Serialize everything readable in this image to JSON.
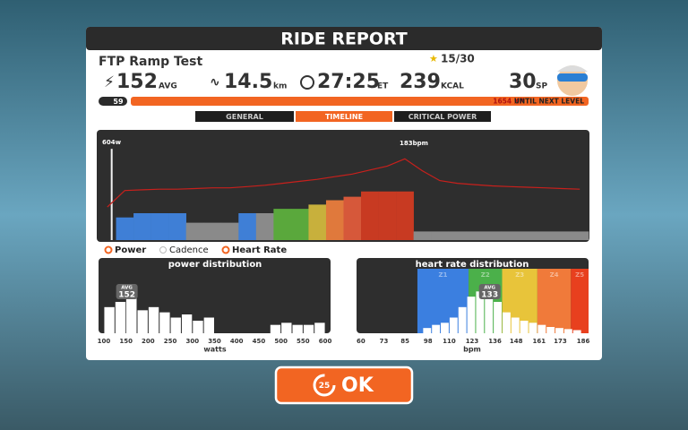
{
  "header": {
    "title": "RIDE REPORT"
  },
  "workout": {
    "name": "FTP Ramp Test",
    "stars": "15/30"
  },
  "stats": [
    {
      "value": 152,
      "unit": "AVG"
    },
    {
      "value": 14.5,
      "unit": "km"
    },
    {
      "value": "27:25",
      "unit": "ET"
    },
    {
      "value": 239,
      "unit": "KCAL"
    },
    {
      "value": 30,
      "unit": "SP"
    }
  ],
  "level": {
    "level": 59,
    "xp": "1654 XP",
    "text": "UNTIL NEXT LEVEL"
  },
  "tabs": [
    "GENERAL",
    "TIMELINE",
    "CRITICAL POWER"
  ],
  "timeline": {
    "max_power_label": "604w",
    "max_hr_label": "183bpm",
    "power": {
      "ylim": [
        0,
        700
      ],
      "values": [
        604,
        150,
        178,
        178,
        178,
        115,
        115,
        115,
        178,
        178,
        207,
        207,
        235,
        264,
        287,
        322,
        322,
        322,
        57,
        57,
        57,
        57,
        57,
        57,
        57,
        57,
        57,
        57
      ],
      "colors": [
        "#f2f2f2",
        "#3f7fd6",
        "#3f7fd6",
        "#3f7fd6",
        "#3f7fd6",
        "#8a8a8a",
        "#8a8a8a",
        "#8a8a8a",
        "#3f7fd6",
        "#8a8a8a",
        "#5aa83c",
        "#5aa83c",
        "#c8b03c",
        "#e0793c",
        "#d6583a",
        "#c83a22",
        "#c83a22",
        "#c83a22",
        "#8a8a8a",
        "#8a8a8a",
        "#8a8a8a",
        "#8a8a8a",
        "#8a8a8a",
        "#8a8a8a",
        "#8a8a8a",
        "#8a8a8a",
        "#8a8a8a",
        "#8a8a8a"
      ]
    },
    "heart_rate": {
      "ylim": [
        60,
        220
      ],
      "color": "#c8201c",
      "values": [
        110,
        135,
        136,
        137,
        137,
        138,
        139,
        139,
        141,
        143,
        146,
        149,
        152,
        156,
        160,
        166,
        172,
        183,
        165,
        150,
        146,
        144,
        142,
        141,
        140,
        139,
        138,
        137
      ]
    }
  },
  "legend": [
    "Power",
    "Cadence",
    "Heart Rate"
  ],
  "power_distribution": {
    "title": "power distribution",
    "avg_label": "AVG",
    "avg": 152,
    "xlabel": "watts",
    "xlim": [
      88,
      612
    ],
    "ylim": [
      0,
      60
    ],
    "xticks": [
      100,
      150,
      200,
      250,
      300,
      350,
      400,
      450,
      500,
      550,
      600
    ],
    "bins": [
      100,
      125,
      150,
      175,
      200,
      225,
      250,
      275,
      300,
      325,
      350,
      375,
      400,
      425,
      450,
      475,
      500,
      525,
      550,
      575,
      600
    ],
    "counts": [
      25,
      30,
      35,
      22,
      25,
      20,
      15,
      18,
      12,
      15,
      0,
      0,
      0,
      0,
      0,
      8,
      10,
      8,
      8,
      10
    ]
  },
  "hr_distribution": {
    "title": "heart rate distribution",
    "avg_label": "AVG",
    "avg": 133,
    "xlabel": "bpm",
    "xlim": [
      57.5,
      189
    ],
    "ylim": [
      0,
      60
    ],
    "xticks": [
      60,
      73,
      85,
      98,
      110,
      123,
      136,
      148,
      161,
      173,
      186
    ],
    "zones": {
      "labels": [
        "Z1",
        "Z2",
        "Z3",
        "Z4",
        "Z5"
      ],
      "from": [
        92,
        121,
        140,
        160,
        179
      ],
      "to": [
        121,
        140,
        160,
        179,
        189
      ],
      "colors": [
        "#3b7fe0",
        "#4bb04a",
        "#e8c43a",
        "#f07a3a",
        "#e8401e"
      ]
    },
    "bins": [
      95,
      100,
      105,
      110,
      115,
      120,
      125,
      130,
      135,
      140,
      145,
      150,
      155,
      160,
      165,
      170,
      175,
      180,
      185
    ],
    "counts": [
      5,
      8,
      10,
      15,
      25,
      35,
      40,
      45,
      30,
      20,
      15,
      12,
      10,
      8,
      6,
      5,
      4,
      3
    ]
  },
  "ok": {
    "countdown": 25,
    "label": "OK"
  }
}
